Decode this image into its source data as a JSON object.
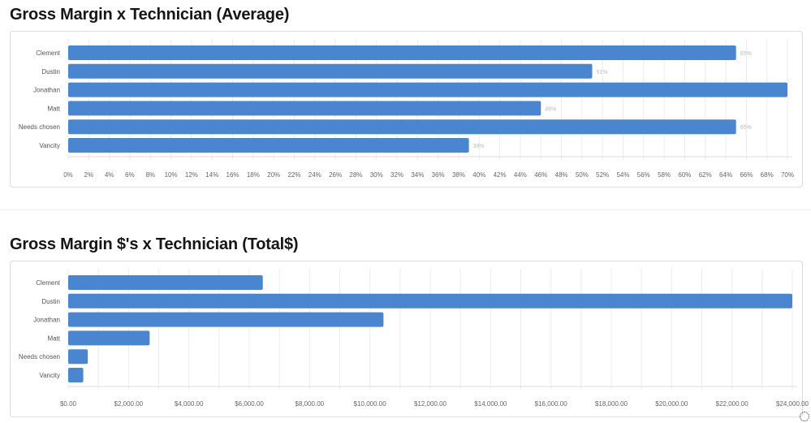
{
  "charts": [
    {
      "title": "Gross Margin x Technician (Average)",
      "chart_data": {
        "type": "bar",
        "orientation": "horizontal",
        "categories": [
          "Clement",
          "Dustin",
          "Jonathan",
          "Matt",
          "Needs chosen",
          "Vancity"
        ],
        "values": [
          65,
          51,
          70,
          46,
          65,
          39
        ],
        "data_labels": [
          "65%",
          "51%",
          "",
          "46%",
          "65%",
          "39%"
        ],
        "xlim": [
          0,
          70
        ],
        "x_ticks": [
          0,
          2,
          4,
          6,
          8,
          10,
          12,
          14,
          16,
          18,
          20,
          22,
          24,
          26,
          28,
          30,
          32,
          34,
          36,
          38,
          40,
          42,
          44,
          46,
          48,
          50,
          52,
          54,
          56,
          58,
          60,
          62,
          64,
          66,
          68,
          70
        ],
        "x_tick_labels": [
          "0%",
          "2%",
          "4%",
          "6%",
          "8%",
          "10%",
          "12%",
          "14%",
          "16%",
          "18%",
          "20%",
          "22%",
          "24%",
          "26%",
          "28%",
          "30%",
          "32%",
          "34%",
          "36%",
          "38%",
          "40%",
          "42%",
          "44%",
          "46%",
          "48%",
          "50%",
          "52%",
          "54%",
          "56%",
          "58%",
          "60%",
          "62%",
          "64%",
          "66%",
          "68%",
          "70%"
        ],
        "grid": true,
        "bar_color": "#4a86d0"
      }
    },
    {
      "title": "Gross Margin $'s x Technician (Total$)",
      "chart_data": {
        "type": "bar",
        "orientation": "horizontal",
        "categories": [
          "Clement",
          "Dustin",
          "Jonathan",
          "Matt",
          "Needs chosen",
          "Vancity"
        ],
        "values": [
          6450,
          24000,
          10450,
          2700,
          650,
          500
        ],
        "data_labels": [
          "",
          "",
          "",
          "",
          "",
          ""
        ],
        "xlim": [
          0,
          24000
        ],
        "x_ticks": [
          0,
          2000,
          4000,
          6000,
          8000,
          10000,
          12000,
          14000,
          16000,
          18000,
          20000,
          22000,
          24000
        ],
        "x_tick_labels": [
          "$0.00",
          "$2,000.00",
          "$4,000.00",
          "$6,000.00",
          "$8,000.00",
          "$10,000.00",
          "$12,000.00",
          "$14,000.00",
          "$16,000.00",
          "$18,000.00",
          "$20,000.00",
          "$22,000.00",
          "$24,000.00"
        ],
        "grid_minor": 1000,
        "grid": true,
        "bar_color": "#4a86d0"
      }
    }
  ]
}
